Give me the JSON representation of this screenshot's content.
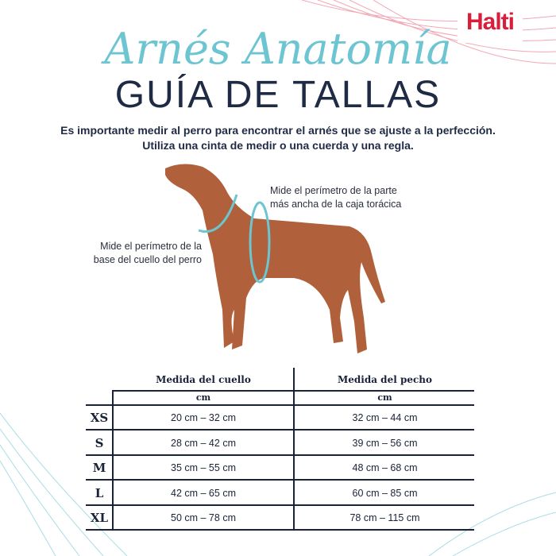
{
  "brand": {
    "logo": "Halti",
    "color": "#d81e3a"
  },
  "header": {
    "script_title": "Arnés Anatomía",
    "title": "GUÍA DE TALLAS"
  },
  "intro": {
    "line1": "Es importante medir al perro para encontrar el arnés que se ajuste a la perfección.",
    "line2": "Utiliza una cinta de medir o una cuerda y una regla."
  },
  "annotations": {
    "chest": [
      "Mide el perímetro de la parte",
      "más ancha de la caja torácica"
    ],
    "neck": [
      "Mide el perímetro de la",
      "base del cuello del perro"
    ]
  },
  "colors": {
    "accent": "#6cc5d0",
    "navy": "#1a2238",
    "dog": "#b0603a"
  },
  "table": {
    "headers": [
      "Medida del cuello",
      "Medida del pecho"
    ],
    "units": [
      "cm",
      "cm"
    ],
    "rows": [
      {
        "size": "XS",
        "neck": "20 cm – 32 cm",
        "chest": "32 cm – 44 cm"
      },
      {
        "size": "S",
        "neck": "28 cm – 42 cm",
        "chest": "39 cm – 56 cm"
      },
      {
        "size": "M",
        "neck": "35 cm – 55 cm",
        "chest": "48 cm – 68 cm"
      },
      {
        "size": "L",
        "neck": "42 cm – 65 cm",
        "chest": "60 cm – 85 cm"
      },
      {
        "size": "XL",
        "neck": "50 cm – 78 cm",
        "chest": "78 cm – 115 cm"
      }
    ]
  }
}
